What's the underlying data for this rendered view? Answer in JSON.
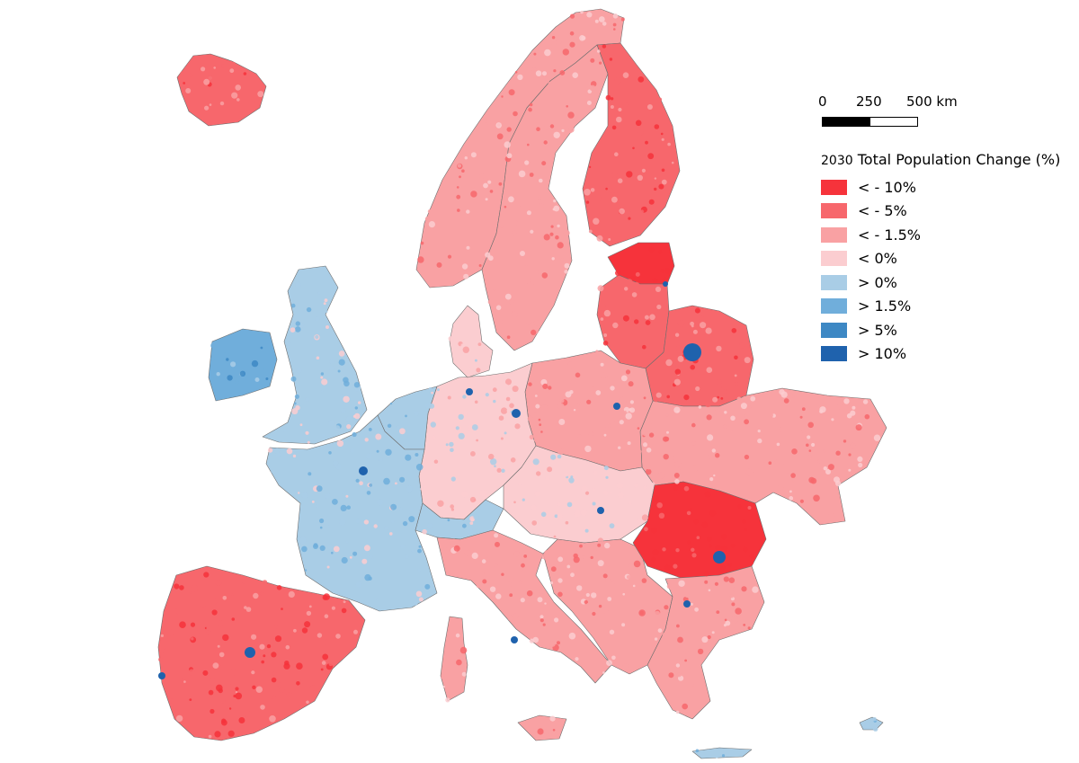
{
  "scale": {
    "tick_0": "0",
    "tick_1": "250",
    "tick_2": "500 km"
  },
  "legend": {
    "title_year": "2030",
    "title_text": "Total Population Change (%)",
    "items": [
      {
        "label": "< - 10%",
        "color": "#f6333b"
      },
      {
        "label": "< - 5%",
        "color": "#f7676c"
      },
      {
        "label": "< - 1.5%",
        "color": "#f9a1a3"
      },
      {
        "label": "< 0%",
        "color": "#fbcdd0"
      },
      {
        "label": "> 0%",
        "color": "#a9cde6"
      },
      {
        "label": "> 1.5%",
        "color": "#70aedb"
      },
      {
        "label": "> 5%",
        "color": "#3d88c4"
      },
      {
        "label": "> 10%",
        "color": "#1f62ad"
      }
    ]
  },
  "regions": [
    {
      "name": "iceland",
      "color": "#f7676c"
    },
    {
      "name": "norway",
      "color": "#f9a1a3"
    },
    {
      "name": "sweden",
      "color": "#f9a1a3"
    },
    {
      "name": "finland",
      "color": "#f7676c"
    },
    {
      "name": "estonia",
      "color": "#f6333b"
    },
    {
      "name": "latvia-lithuania",
      "color": "#f7676c"
    },
    {
      "name": "belarus",
      "color": "#f7676c"
    },
    {
      "name": "ukraine",
      "color": "#f9a1a3"
    },
    {
      "name": "poland",
      "color": "#f9a1a3"
    },
    {
      "name": "germany",
      "color": "#fbcdd0"
    },
    {
      "name": "france",
      "color": "#a9cde6"
    },
    {
      "name": "iberia",
      "color": "#f7676c"
    },
    {
      "name": "italy",
      "color": "#f9a1a3"
    },
    {
      "name": "balkans",
      "color": "#f9a1a3"
    },
    {
      "name": "romania",
      "color": "#f6333b"
    },
    {
      "name": "bulgaria-greece",
      "color": "#f9a1a3"
    },
    {
      "name": "great-britain",
      "color": "#a9cde6"
    },
    {
      "name": "ireland",
      "color": "#70aedb"
    },
    {
      "name": "denmark",
      "color": "#fbcdd0"
    },
    {
      "name": "benelux",
      "color": "#a9cde6"
    },
    {
      "name": "sardinia-corsica",
      "color": "#f9a1a3"
    },
    {
      "name": "sicily",
      "color": "#f9a1a3"
    },
    {
      "name": "cyprus-crete",
      "color": "#a9cde6"
    },
    {
      "name": "alps-switzerland",
      "color": "#a9cde6"
    },
    {
      "name": "czech-austria-hungary",
      "color": "#fbcdd0"
    }
  ]
}
